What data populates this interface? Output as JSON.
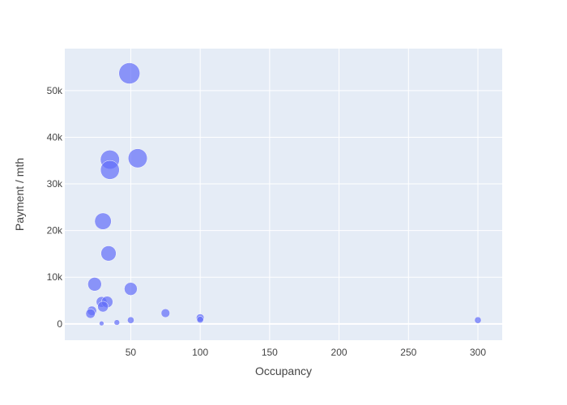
{
  "chart_data": {
    "type": "scatter",
    "title": "",
    "xlabel": "Occupancy",
    "ylabel": "Payment / mth",
    "xlim": [
      2.5,
      317.5
    ],
    "ylim": [
      -3500,
      59000
    ],
    "x_ticks": [
      50,
      100,
      150,
      200,
      250,
      300
    ],
    "x_tick_labels": [
      "50",
      "100",
      "150",
      "200",
      "250",
      "300"
    ],
    "y_ticks": [
      0,
      10000,
      20000,
      30000,
      40000,
      50000
    ],
    "y_tick_labels": [
      "0",
      "10k",
      "20k",
      "30k",
      "40k",
      "50k"
    ],
    "grid": true,
    "legend": "none",
    "colors": {
      "marker": "#636efa",
      "plot_bg": "#e5ecf6",
      "grid": "#ffffff",
      "text": "#444444"
    },
    "bubble_size_scale": "area",
    "points": [
      {
        "x": 49,
        "y": 53700,
        "size": 1.0
      },
      {
        "x": 55,
        "y": 35500,
        "size": 0.82
      },
      {
        "x": 35,
        "y": 35200,
        "size": 0.82
      },
      {
        "x": 35,
        "y": 33000,
        "size": 0.8
      },
      {
        "x": 30,
        "y": 22000,
        "size": 0.62
      },
      {
        "x": 34,
        "y": 15100,
        "size": 0.52
      },
      {
        "x": 24,
        "y": 8500,
        "size": 0.42
      },
      {
        "x": 50,
        "y": 7500,
        "size": 0.38
      },
      {
        "x": 29,
        "y": 4700,
        "size": 0.26
      },
      {
        "x": 33,
        "y": 4700,
        "size": 0.3
      },
      {
        "x": 30,
        "y": 3700,
        "size": 0.26
      },
      {
        "x": 22,
        "y": 2800,
        "size": 0.2
      },
      {
        "x": 21,
        "y": 2200,
        "size": 0.2
      },
      {
        "x": 75,
        "y": 2300,
        "size": 0.17
      },
      {
        "x": 100,
        "y": 1300,
        "size": 0.14
      },
      {
        "x": 100,
        "y": 900,
        "size": 0.1
      },
      {
        "x": 50,
        "y": 800,
        "size": 0.1
      },
      {
        "x": 300,
        "y": 800,
        "size": 0.1
      },
      {
        "x": 40,
        "y": 300,
        "size": 0.07
      },
      {
        "x": 29,
        "y": 100,
        "size": 0.05
      }
    ]
  }
}
